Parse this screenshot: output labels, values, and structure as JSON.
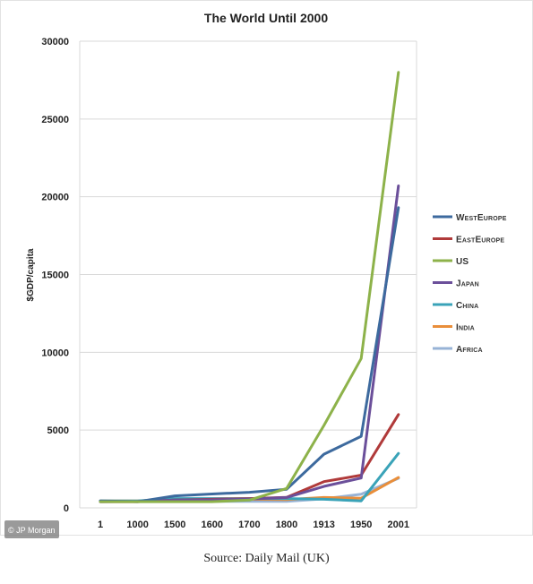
{
  "caption": {
    "source": "Source: Daily Mail (UK)",
    "credit": "© JP Morgan"
  },
  "chart_data": {
    "type": "line",
    "title": "The World Until 2000",
    "xlabel": "",
    "ylabel": "$GDP/capita",
    "categories": [
      "1",
      "1000",
      "1500",
      "1600",
      "1700",
      "1800",
      "1913",
      "1950",
      "2001"
    ],
    "ylim": [
      0,
      30000
    ],
    "yticks": [
      0,
      5000,
      10000,
      15000,
      20000,
      25000,
      30000
    ],
    "ytick_labels": [
      "0",
      "5000",
      "10000",
      "15000",
      "20000",
      "25000",
      "30000"
    ],
    "grid": true,
    "legend": "right",
    "series": [
      {
        "name": "WestEurope",
        "color": "#3d6a9e",
        "values": [
          450,
          400,
          770,
          890,
          1000,
          1200,
          3450,
          4600,
          19300
        ]
      },
      {
        "name": "EastEurope",
        "color": "#b03a3a",
        "values": [
          400,
          400,
          500,
          550,
          600,
          680,
          1690,
          2100,
          6000
        ]
      },
      {
        "name": "US",
        "color": "#8db24a",
        "values": [
          400,
          400,
          400,
          400,
          500,
          1250,
          5300,
          9600,
          28000
        ]
      },
      {
        "name": "Japan",
        "color": "#6b4f9a",
        "values": [
          400,
          420,
          500,
          520,
          570,
          670,
          1380,
          1920,
          20700
        ]
      },
      {
        "name": "China",
        "color": "#3aa3b8",
        "values": [
          450,
          450,
          600,
          600,
          600,
          600,
          550,
          450,
          3500
        ]
      },
      {
        "name": "India",
        "color": "#e98e3a",
        "values": [
          450,
          450,
          550,
          550,
          550,
          530,
          670,
          620,
          1950
        ]
      },
      {
        "name": "Africa",
        "color": "#97b3d6",
        "values": [
          430,
          420,
          410,
          420,
          420,
          420,
          580,
          880,
          1900
        ]
      }
    ]
  }
}
